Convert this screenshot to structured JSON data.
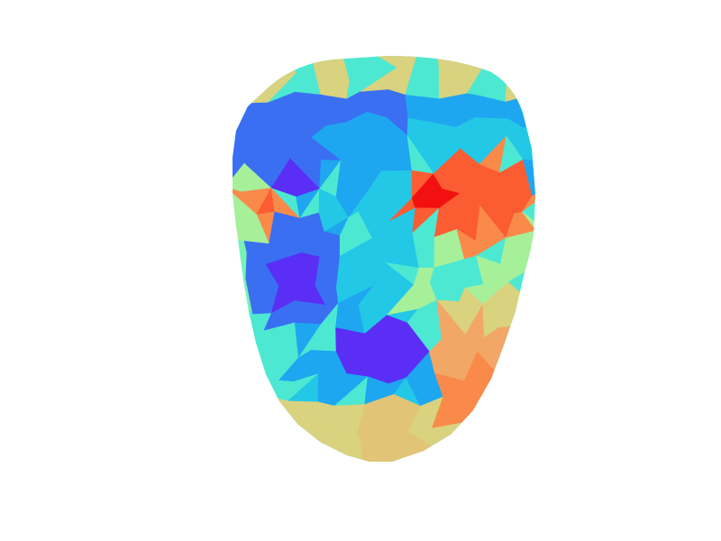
{
  "figure": {
    "type": "triangulated face mesh heatmap",
    "colormap": "rainbow",
    "background": "#ffffff"
  },
  "palette": {
    "deep_blue": "#5a2ef5",
    "blue": "#3a6ff2",
    "sky": "#1fa6f0",
    "cyan": "#22c8e6",
    "aqua": "#4de8d2",
    "mint": "#7af2b6",
    "light_green": "#a6f09a",
    "yellow_green": "#c6e08a",
    "khaki": "#d9d27e",
    "sand": "#e2c477",
    "peach": "#f2a767",
    "orange": "#fa8a4a",
    "red_orange": "#fb5c32",
    "red": "#f21010"
  }
}
